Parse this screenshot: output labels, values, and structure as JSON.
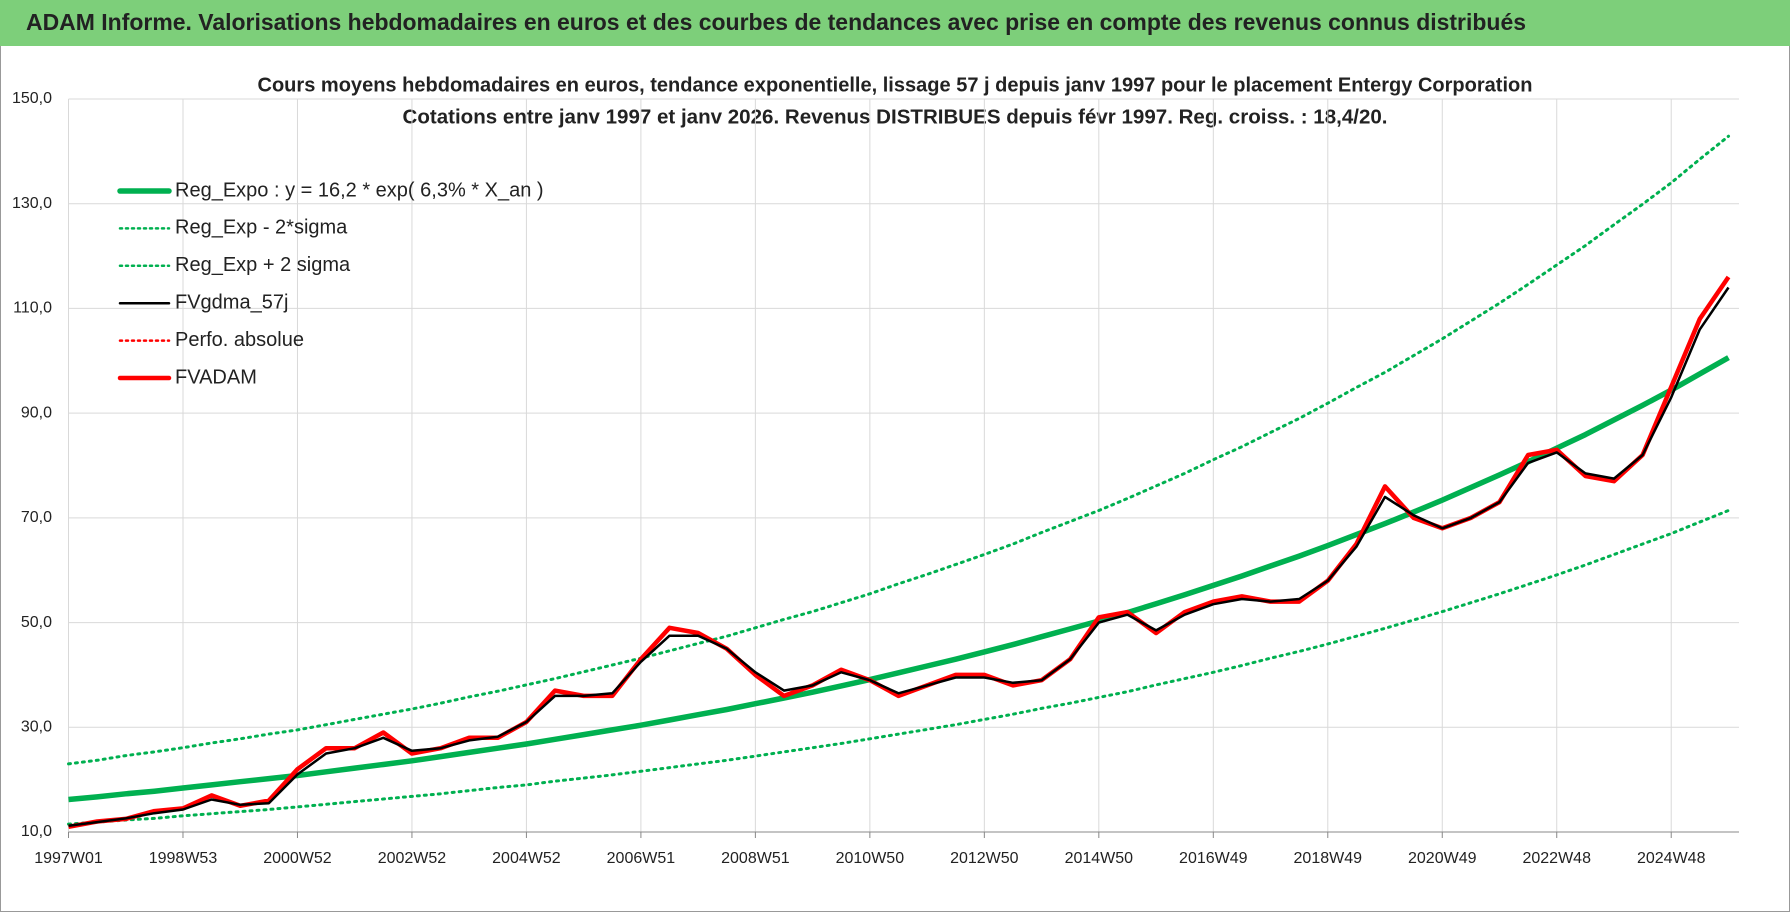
{
  "header": {
    "title": "ADAM Informe. Valorisations hebdomadaires en euros et des courbes de tendances avec prise en compte des revenus connus distribués"
  },
  "chart_data": {
    "type": "line",
    "title": "Cours moyens hebdomadaires en euros, tendance exponentielle, lissage 57 j depuis janv 1997 pour le placement Entergy Corporation",
    "subtitle": "Cotations entre janv 1997 et janv 2026. Revenus DISTRIBUES depuis févr 1997. Reg. croiss. : 18,4/20.",
    "categories": [
      "1997W01",
      null,
      null,
      null,
      "1998W53",
      null,
      null,
      null,
      "2000W52",
      null,
      null,
      null,
      "2002W52",
      null,
      null,
      null,
      "2004W52",
      null,
      null,
      null,
      "2006W51",
      null,
      null,
      null,
      "2008W51",
      null,
      null,
      null,
      "2010W50",
      null,
      null,
      null,
      "2012W50",
      null,
      null,
      null,
      "2014W50",
      null,
      null,
      null,
      "2016W49",
      null,
      null,
      null,
      "2018W49",
      null,
      null,
      null,
      "2020W49",
      null,
      null,
      null,
      "2022W48",
      null,
      null,
      null,
      "2024W48",
      null,
      null
    ],
    "ylim": [
      10,
      150
    ],
    "yticks": [
      {
        "value": 10,
        "label": "10,0"
      },
      {
        "value": 30,
        "label": "30,0"
      },
      {
        "value": 50,
        "label": "50,0"
      },
      {
        "value": 70,
        "label": "70,0"
      },
      {
        "value": 90,
        "label": "90,0"
      },
      {
        "value": 110,
        "label": "110,0"
      },
      {
        "value": 130,
        "label": "130,0"
      },
      {
        "value": 150,
        "label": "150,0"
      }
    ],
    "grid": true,
    "legend": "upper left",
    "series": [
      {
        "name": "Reg_Expo : y = 16,2 * exp( 6,3% *  X_an )",
        "color": "#00b050",
        "line_style": "solid",
        "values": [
          16.2,
          16.7,
          17.3,
          17.8,
          18.4,
          19.0,
          19.6,
          20.2,
          20.8,
          21.5,
          22.2,
          22.9,
          23.6,
          24.4,
          25.2,
          26.0,
          26.8,
          27.7,
          28.6,
          29.5,
          30.4,
          31.4,
          32.4,
          33.4,
          34.5,
          35.6,
          36.7,
          37.9,
          39.1,
          40.4,
          41.7,
          43.0,
          44.4,
          45.8,
          47.3,
          48.8,
          50.3,
          51.9,
          53.6,
          55.3,
          57.1,
          58.9,
          60.8,
          62.7,
          64.7,
          66.8,
          68.9,
          71.1,
          73.4,
          75.8,
          78.2,
          80.7,
          83.3,
          85.9,
          88.7,
          91.5,
          94.4,
          97.5,
          100.6
        ]
      },
      {
        "name": "Reg_Exp - 2*sigma",
        "color": "#00b050",
        "line_style": "dotted",
        "values": [
          11.5,
          11.9,
          12.3,
          12.6,
          13.1,
          13.5,
          13.9,
          14.3,
          14.8,
          15.3,
          15.8,
          16.3,
          16.8,
          17.3,
          17.9,
          18.5,
          19.0,
          19.7,
          20.3,
          20.9,
          21.6,
          22.3,
          23.0,
          23.7,
          24.5,
          25.3,
          26.1,
          26.9,
          27.8,
          28.7,
          29.6,
          30.5,
          31.5,
          32.5,
          33.6,
          34.6,
          35.7,
          36.8,
          38.1,
          39.3,
          40.5,
          41.8,
          43.2,
          44.5,
          45.9,
          47.4,
          48.9,
          50.5,
          52.1,
          53.8,
          55.5,
          57.3,
          59.1,
          61.0,
          63.0,
          65.0,
          67.0,
          69.2,
          71.4
        ]
      },
      {
        "name": "Reg_Exp + 2 sigma",
        "color": "#00b050",
        "line_style": "dotted",
        "values": [
          23.0,
          23.7,
          24.6,
          25.3,
          26.1,
          27.0,
          27.8,
          28.7,
          29.5,
          30.5,
          31.5,
          32.5,
          33.5,
          34.6,
          35.8,
          36.9,
          38.1,
          39.3,
          40.6,
          41.9,
          43.2,
          44.6,
          46.0,
          47.4,
          49.0,
          50.6,
          52.1,
          53.8,
          55.5,
          57.4,
          59.2,
          61.1,
          63.0,
          65.0,
          67.2,
          69.3,
          71.4,
          73.7,
          76.1,
          78.5,
          81.1,
          83.6,
          86.3,
          89.0,
          91.9,
          94.9,
          97.8,
          101.0,
          104.2,
          107.6,
          111.0,
          114.6,
          118.3,
          122.0,
          126.0,
          129.9,
          134.0,
          138.5,
          142.9
        ]
      },
      {
        "name": "FVgdma_57j",
        "color": "#000000",
        "line_style": "solid",
        "values": [
          11.2,
          11.9,
          12.6,
          13.6,
          14.3,
          16.2,
          15.2,
          15.5,
          21,
          25,
          26,
          28,
          25.5,
          26,
          27.5,
          28.2,
          31,
          36,
          36,
          36.5,
          42.5,
          47.5,
          47.5,
          45,
          40.5,
          37,
          38,
          40.5,
          39,
          36.5,
          38,
          39.5,
          39.5,
          38.5,
          39,
          43,
          50,
          51.5,
          48.5,
          51.5,
          53.5,
          54.5,
          54,
          54.5,
          58,
          64.5,
          74,
          70.5,
          68,
          70,
          73,
          80.5,
          82.5,
          78.5,
          77.5,
          82,
          93,
          106,
          114
        ]
      },
      {
        "name": "Perfo. absolue",
        "color": "#ff0000",
        "line_style": "dotted",
        "values": [
          null,
          null,
          null,
          null,
          null,
          null,
          null,
          null,
          null,
          null,
          null,
          null,
          null,
          null,
          null,
          null,
          null,
          null,
          null,
          null,
          null,
          null,
          null,
          null,
          null,
          null,
          null,
          null,
          null,
          null,
          null,
          null,
          null,
          null,
          null,
          null,
          null,
          null,
          null,
          null,
          null,
          null,
          null,
          null,
          null,
          null,
          null,
          null,
          null,
          null,
          null,
          null,
          null,
          null,
          null,
          null,
          null,
          null,
          null
        ]
      },
      {
        "name": "FVADAM",
        "color": "#ff0000",
        "line_style": "thick",
        "values": [
          11,
          12,
          12.5,
          14,
          14.5,
          17,
          15,
          16,
          22,
          26,
          26,
          29,
          25,
          26,
          28,
          28,
          31,
          37,
          36,
          36,
          43,
          49,
          48,
          45,
          40,
          36,
          38,
          41,
          39,
          36,
          38,
          40,
          40,
          38,
          39,
          43,
          51,
          52,
          48,
          52,
          54,
          55,
          54,
          54,
          58,
          65,
          76,
          70,
          68,
          70,
          73,
          82,
          83,
          78,
          77,
          82,
          95,
          108,
          116
        ]
      }
    ]
  }
}
